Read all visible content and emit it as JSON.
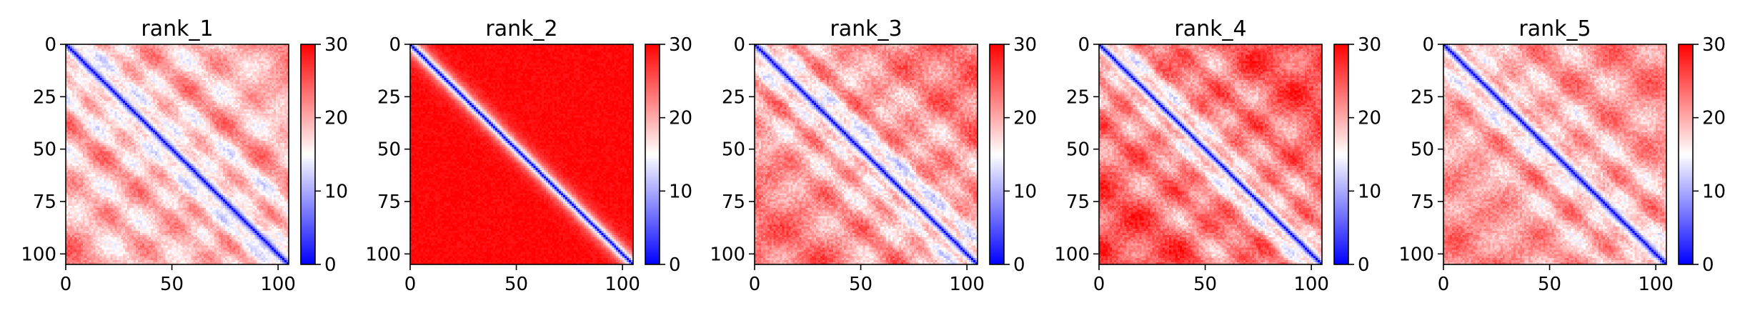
{
  "chart_data": {
    "type": "heatmap",
    "colormap": "bwr",
    "colorbar": {
      "range": [
        0,
        30
      ],
      "ticks": [
        0,
        10,
        20,
        30
      ]
    },
    "axis_ticks": {
      "x": [
        0,
        50,
        100
      ],
      "y": [
        0,
        25,
        50,
        75,
        100
      ]
    },
    "xlim": [
      0,
      105
    ],
    "ylim": [
      105,
      0
    ],
    "matrix_size": 105,
    "panels": [
      {
        "title": "rank_1"
      },
      {
        "title": "rank_2"
      },
      {
        "title": "rank_3"
      },
      {
        "title": "rank_4"
      },
      {
        "title": "rank_5"
      }
    ],
    "colors": {
      "low": "#0000ff",
      "mid": "#ffffff",
      "high": "#ff0000"
    }
  }
}
